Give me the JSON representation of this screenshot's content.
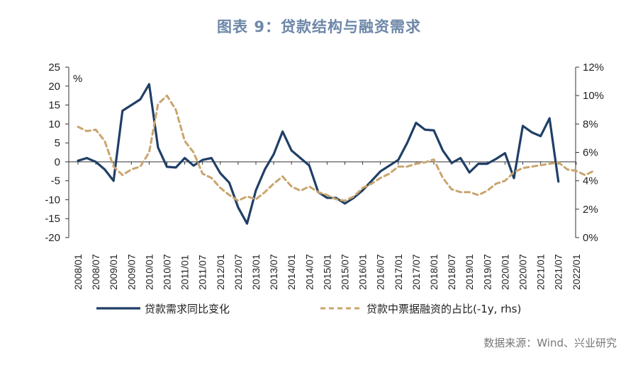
{
  "title": "图表 9：贷款结构与融资需求",
  "source": "数据来源：Wind、兴业研究",
  "chart_data": {
    "type": "line",
    "ylabel_unit": "%",
    "x_tick_labels": [
      "2008/01",
      "2008/07",
      "2009/01",
      "2009/07",
      "2010/01",
      "2010/07",
      "2011/01",
      "2011/07",
      "2012/01",
      "2012/07",
      "2013/01",
      "2013/07",
      "2014/01",
      "2014/07",
      "2015/01",
      "2015/07",
      "2016/01",
      "2016/07",
      "2017/01",
      "2017/07",
      "2018/01",
      "2018/07",
      "2019/01",
      "2019/07",
      "2020/01",
      "2020/07",
      "2021/01",
      "2021/07",
      "2022/01"
    ],
    "ylim_left": [
      -20,
      25
    ],
    "yticks_left": [
      "25",
      "20",
      "15",
      "10",
      "5",
      "0",
      "-5",
      "-10",
      "-15",
      "-20"
    ],
    "ylim_right": [
      0,
      12
    ],
    "yticks_right": [
      "12%",
      "10%",
      "8%",
      "6%",
      "4%",
      "2%",
      "0%"
    ],
    "series": [
      {
        "name": "贷款需求同比变化",
        "axis": "left",
        "color": "#1f3f66",
        "style": "solid",
        "points": [
          [
            "2008/01",
            0.3
          ],
          [
            "2008/04",
            1.0
          ],
          [
            "2008/07",
            0
          ],
          [
            "2008/10",
            -2.0
          ],
          [
            "2009/01",
            -5.0
          ],
          [
            "2009/04",
            13.5
          ],
          [
            "2009/07",
            15.0
          ],
          [
            "2009/10",
            16.5
          ],
          [
            "2010/01",
            20.5
          ],
          [
            "2010/04",
            3.8
          ],
          [
            "2010/07",
            -1.3
          ],
          [
            "2010/10",
            -1.5
          ],
          [
            "2011/01",
            1.0
          ],
          [
            "2011/04",
            -1.0
          ],
          [
            "2011/07",
            0.5
          ],
          [
            "2011/10",
            1.0
          ],
          [
            "2012/01",
            -3.0
          ],
          [
            "2012/04",
            -5.5
          ],
          [
            "2012/07",
            -12.0
          ],
          [
            "2012/10",
            -16.3
          ],
          [
            "2013/01",
            -7.5
          ],
          [
            "2013/04",
            -2.0
          ],
          [
            "2013/07",
            2.0
          ],
          [
            "2013/10",
            8.0
          ],
          [
            "2014/01",
            3.0
          ],
          [
            "2014/04",
            1.0
          ],
          [
            "2014/07",
            -1.0
          ],
          [
            "2014/10",
            -8.0
          ],
          [
            "2015/01",
            -9.5
          ],
          [
            "2015/04",
            -9.5
          ],
          [
            "2015/07",
            -11.0
          ],
          [
            "2015/10",
            -9.5
          ],
          [
            "2016/01",
            -7.5
          ],
          [
            "2016/04",
            -5.0
          ],
          [
            "2016/07",
            -2.5
          ],
          [
            "2016/10",
            -1.0
          ],
          [
            "2017/01",
            0.5
          ],
          [
            "2017/04",
            5.0
          ],
          [
            "2017/07",
            10.3
          ],
          [
            "2017/10",
            8.5
          ],
          [
            "2018/01",
            8.3
          ],
          [
            "2018/04",
            3.0
          ],
          [
            "2018/07",
            -0.3
          ],
          [
            "2018/10",
            1.0
          ],
          [
            "2019/01",
            -2.8
          ],
          [
            "2019/04",
            -0.5
          ],
          [
            "2019/07",
            -0.5
          ],
          [
            "2019/10",
            0.8
          ],
          [
            "2020/01",
            2.3
          ],
          [
            "2020/04",
            -4.3
          ],
          [
            "2020/07",
            9.5
          ],
          [
            "2020/10",
            7.8
          ],
          [
            "2021/01",
            6.8
          ],
          [
            "2021/04",
            11.5
          ],
          [
            "2021/07",
            -5.2
          ]
        ]
      },
      {
        "name": "贷款中票据融资的占比(-1y, rhs)",
        "axis": "right",
        "color": "#c9a56e",
        "style": "dashed",
        "points": [
          [
            "2008/01",
            7.8
          ],
          [
            "2008/04",
            7.5
          ],
          [
            "2008/07",
            7.6
          ],
          [
            "2008/10",
            6.8
          ],
          [
            "2009/01",
            5.0
          ],
          [
            "2009/04",
            4.4
          ],
          [
            "2009/07",
            4.8
          ],
          [
            "2009/10",
            5.0
          ],
          [
            "2010/01",
            6.0
          ],
          [
            "2010/04",
            9.4
          ],
          [
            "2010/07",
            10.0
          ],
          [
            "2010/10",
            9.0
          ],
          [
            "2011/01",
            6.8
          ],
          [
            "2011/04",
            6.0
          ],
          [
            "2011/07",
            4.5
          ],
          [
            "2011/10",
            4.2
          ],
          [
            "2012/01",
            3.5
          ],
          [
            "2012/04",
            3.0
          ],
          [
            "2012/07",
            2.6
          ],
          [
            "2012/10",
            2.9
          ],
          [
            "2013/01",
            2.7
          ],
          [
            "2013/04",
            3.2
          ],
          [
            "2013/07",
            3.8
          ],
          [
            "2013/10",
            4.3
          ],
          [
            "2014/01",
            3.6
          ],
          [
            "2014/04",
            3.3
          ],
          [
            "2014/07",
            3.6
          ],
          [
            "2014/10",
            3.2
          ],
          [
            "2015/01",
            3.0
          ],
          [
            "2015/04",
            2.7
          ],
          [
            "2015/07",
            2.6
          ],
          [
            "2015/10",
            2.9
          ],
          [
            "2016/01",
            3.5
          ],
          [
            "2016/04",
            3.8
          ],
          [
            "2016/07",
            4.2
          ],
          [
            "2016/10",
            4.5
          ],
          [
            "2017/01",
            5.0
          ],
          [
            "2017/04",
            5.0
          ],
          [
            "2017/07",
            5.2
          ],
          [
            "2017/10",
            5.3
          ],
          [
            "2018/01",
            5.5
          ],
          [
            "2018/04",
            4.2
          ],
          [
            "2018/07",
            3.4
          ],
          [
            "2018/10",
            3.2
          ],
          [
            "2019/01",
            3.2
          ],
          [
            "2019/04",
            3.0
          ],
          [
            "2019/07",
            3.3
          ],
          [
            "2019/10",
            3.8
          ],
          [
            "2020/01",
            4.0
          ],
          [
            "2020/04",
            4.6
          ],
          [
            "2020/07",
            4.9
          ],
          [
            "2020/10",
            5.0
          ],
          [
            "2021/01",
            5.1
          ],
          [
            "2021/04",
            5.2
          ],
          [
            "2021/07",
            5.3
          ],
          [
            "2021/10",
            4.8
          ],
          [
            "2022/01",
            4.7
          ],
          [
            "2022/04",
            4.4
          ],
          [
            "2022/07",
            4.7
          ]
        ]
      }
    ]
  }
}
